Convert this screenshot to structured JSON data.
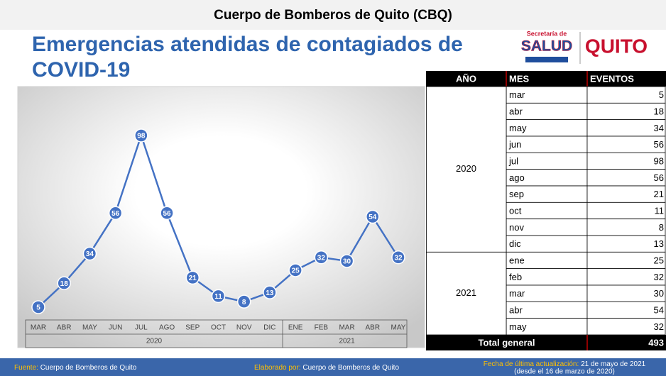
{
  "header": {
    "title": "Cuerpo de Bomberos de Quito (CBQ)"
  },
  "logo": {
    "line1": "Secretaría de",
    "line2": "SALUD",
    "city": "QUITO"
  },
  "chart_data": {
    "type": "line",
    "title_lines": [
      "Emergencias atendidas de contagiados de",
      "COVID-19"
    ],
    "color": "#4472c4",
    "groups": [
      {
        "label": "2020",
        "categories": [
          "MAR",
          "ABR",
          "MAY",
          "JUN",
          "JUL",
          "AGO",
          "SEP",
          "OCT",
          "NOV",
          "DIC"
        ],
        "values": [
          5,
          18,
          34,
          56,
          98,
          56,
          21,
          11,
          8,
          13
        ]
      },
      {
        "label": "2021",
        "categories": [
          "ENE",
          "FEB",
          "MAR",
          "ABR",
          "MAY"
        ],
        "values": [
          25,
          32,
          30,
          54,
          32
        ]
      }
    ]
  },
  "table": {
    "header": [
      "AÑO",
      "MES",
      "EVENTOS"
    ],
    "groups": [
      {
        "year": "2020",
        "rows": [
          [
            "mar",
            "5"
          ],
          [
            "abr",
            "18"
          ],
          [
            "may",
            "34"
          ],
          [
            "jun",
            "56"
          ],
          [
            "jul",
            "98"
          ],
          [
            "ago",
            "56"
          ],
          [
            "sep",
            "21"
          ],
          [
            "oct",
            "11"
          ],
          [
            "nov",
            "8"
          ],
          [
            "dic",
            "13"
          ]
        ]
      },
      {
        "year": "2021",
        "rows": [
          [
            "ene",
            "25"
          ],
          [
            "feb",
            "32"
          ],
          [
            "mar",
            "30"
          ],
          [
            "abr",
            "54"
          ],
          [
            "may",
            "32"
          ]
        ]
      }
    ],
    "total": {
      "label": "Total general",
      "value": "493"
    }
  },
  "footer": {
    "source": {
      "label": "Fuente:",
      "value": "Cuerpo de Bomberos de Quito"
    },
    "author": {
      "label": "Elaborado por:",
      "value": "Cuerpo de Bomberos de Quito"
    },
    "updated": {
      "label": "Fecha de última actualización:",
      "value": "21 de mayo de 2021",
      "note": "(desde el 16 de marzo de 2020)"
    }
  }
}
